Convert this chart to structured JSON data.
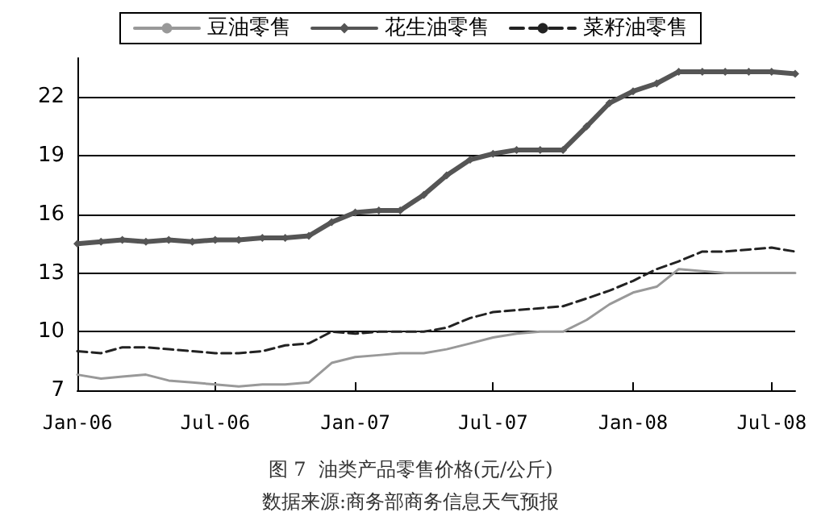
{
  "chart_data": {
    "type": "line",
    "title": "图 7  油类产品零售价格(元/公斤)",
    "annotations": [
      "数据来源:商务部商务信息天气预报"
    ],
    "x": [
      "2006-01",
      "2006-02",
      "2006-03",
      "2006-04",
      "2006-05",
      "2006-06",
      "2006-07",
      "2006-08",
      "2006-09",
      "2006-10",
      "2006-11",
      "2006-12",
      "2007-01",
      "2007-02",
      "2007-03",
      "2007-04",
      "2007-05",
      "2007-06",
      "2007-07",
      "2007-08",
      "2007-09",
      "2007-10",
      "2007-11",
      "2007-12",
      "2008-01",
      "2008-02",
      "2008-03",
      "2008-04",
      "2008-05",
      "2008-06",
      "2008-07",
      "2008-08"
    ],
    "series": [
      {
        "name": "豆油零售",
        "color": "#999999",
        "marker": "none",
        "line_style": "solid",
        "values": [
          7.8,
          7.6,
          7.7,
          7.8,
          7.5,
          7.4,
          7.3,
          7.2,
          7.3,
          7.3,
          7.4,
          8.4,
          8.7,
          8.8,
          8.9,
          8.9,
          9.1,
          9.4,
          9.7,
          9.9,
          10.0,
          10.0,
          10.6,
          11.4,
          12.0,
          12.3,
          13.2,
          13.1,
          13.0,
          13.0,
          13.0,
          13.0
        ]
      },
      {
        "name": "花生油零售",
        "color": "#555555",
        "marker": "diamond",
        "line_style": "solid",
        "values": [
          14.5,
          14.6,
          14.7,
          14.6,
          14.7,
          14.6,
          14.7,
          14.7,
          14.8,
          14.8,
          14.9,
          15.6,
          16.1,
          16.2,
          16.2,
          17.0,
          18.0,
          18.8,
          19.1,
          19.3,
          19.3,
          19.3,
          20.5,
          21.7,
          22.3,
          22.7,
          23.3,
          23.3,
          23.3,
          23.3,
          23.3,
          23.2
        ]
      },
      {
        "name": "菜籽油零售",
        "color": "#222222",
        "marker": "none",
        "line_style": "dashed",
        "values": [
          9.0,
          8.9,
          9.2,
          9.2,
          9.1,
          9.0,
          8.9,
          8.9,
          9.0,
          9.3,
          9.4,
          10.0,
          9.9,
          10.0,
          10.0,
          10.0,
          10.2,
          10.7,
          11.0,
          11.1,
          11.2,
          11.3,
          11.7,
          12.1,
          12.6,
          13.2,
          13.6,
          14.1,
          14.1,
          14.2,
          14.3,
          14.1
        ]
      }
    ],
    "xlim": [
      "2006-01",
      "2008-08"
    ],
    "xticks": [
      {
        "value": "2006-01",
        "label": "Jan-06"
      },
      {
        "value": "2006-07",
        "label": "Jul-06"
      },
      {
        "value": "2007-01",
        "label": "Jan-07"
      },
      {
        "value": "2007-07",
        "label": "Jul-07"
      },
      {
        "value": "2008-01",
        "label": "Jan-08"
      },
      {
        "value": "2008-07",
        "label": "Jul-08"
      }
    ],
    "ylim": [
      7,
      24
    ],
    "yticks": [
      7,
      10,
      13,
      16,
      19,
      22
    ],
    "grid": "y",
    "legend": "top"
  }
}
